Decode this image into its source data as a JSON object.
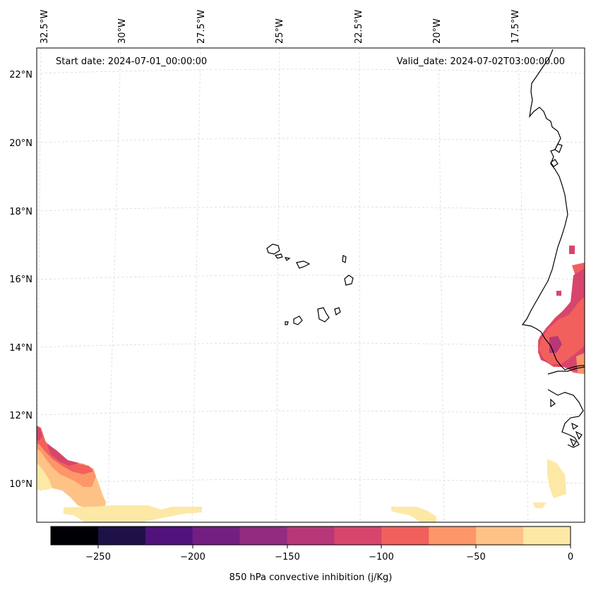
{
  "map": {
    "start_label": "Start date: 2024-07-01_00:00:00",
    "valid_label": "Valid_date: 2024-07-02T03:00:00.00",
    "lon_labels": [
      "32.5°W",
      "30°W",
      "27.5°W",
      "25°W",
      "22.5°W",
      "20°W",
      "17.5°W"
    ],
    "lat_labels": [
      "22°N",
      "20°N",
      "18°N",
      "16°N",
      "14°N",
      "12°N",
      "10°N"
    ],
    "gridlines": true,
    "coastline_color": "#000000",
    "gridline_color": "#d8d8d8"
  },
  "colorbar": {
    "label": "850 hPa convective inhibition (j/Kg)",
    "ticks": [
      "−250",
      "−200",
      "−150",
      "−100",
      "−50",
      "0"
    ],
    "range": [
      -275,
      0
    ],
    "bins": [
      {
        "from": -275,
        "to": -250,
        "color": "#000004"
      },
      {
        "from": -250,
        "to": -225,
        "color": "#1d1147"
      },
      {
        "from": -225,
        "to": -200,
        "color": "#51127c"
      },
      {
        "from": -200,
        "to": -175,
        "color": "#721f81"
      },
      {
        "from": -175,
        "to": -150,
        "color": "#932b80"
      },
      {
        "from": -150,
        "to": -125,
        "color": "#b73779"
      },
      {
        "from": -125,
        "to": -100,
        "color": "#d8456c"
      },
      {
        "from": -100,
        "to": -75,
        "color": "#f1605d"
      },
      {
        "from": -75,
        "to": -50,
        "color": "#fd9668"
      },
      {
        "from": -50,
        "to": -25,
        "color": "#fec287"
      },
      {
        "from": -25,
        "to": 0,
        "color": "#fde8a5"
      }
    ]
  }
}
